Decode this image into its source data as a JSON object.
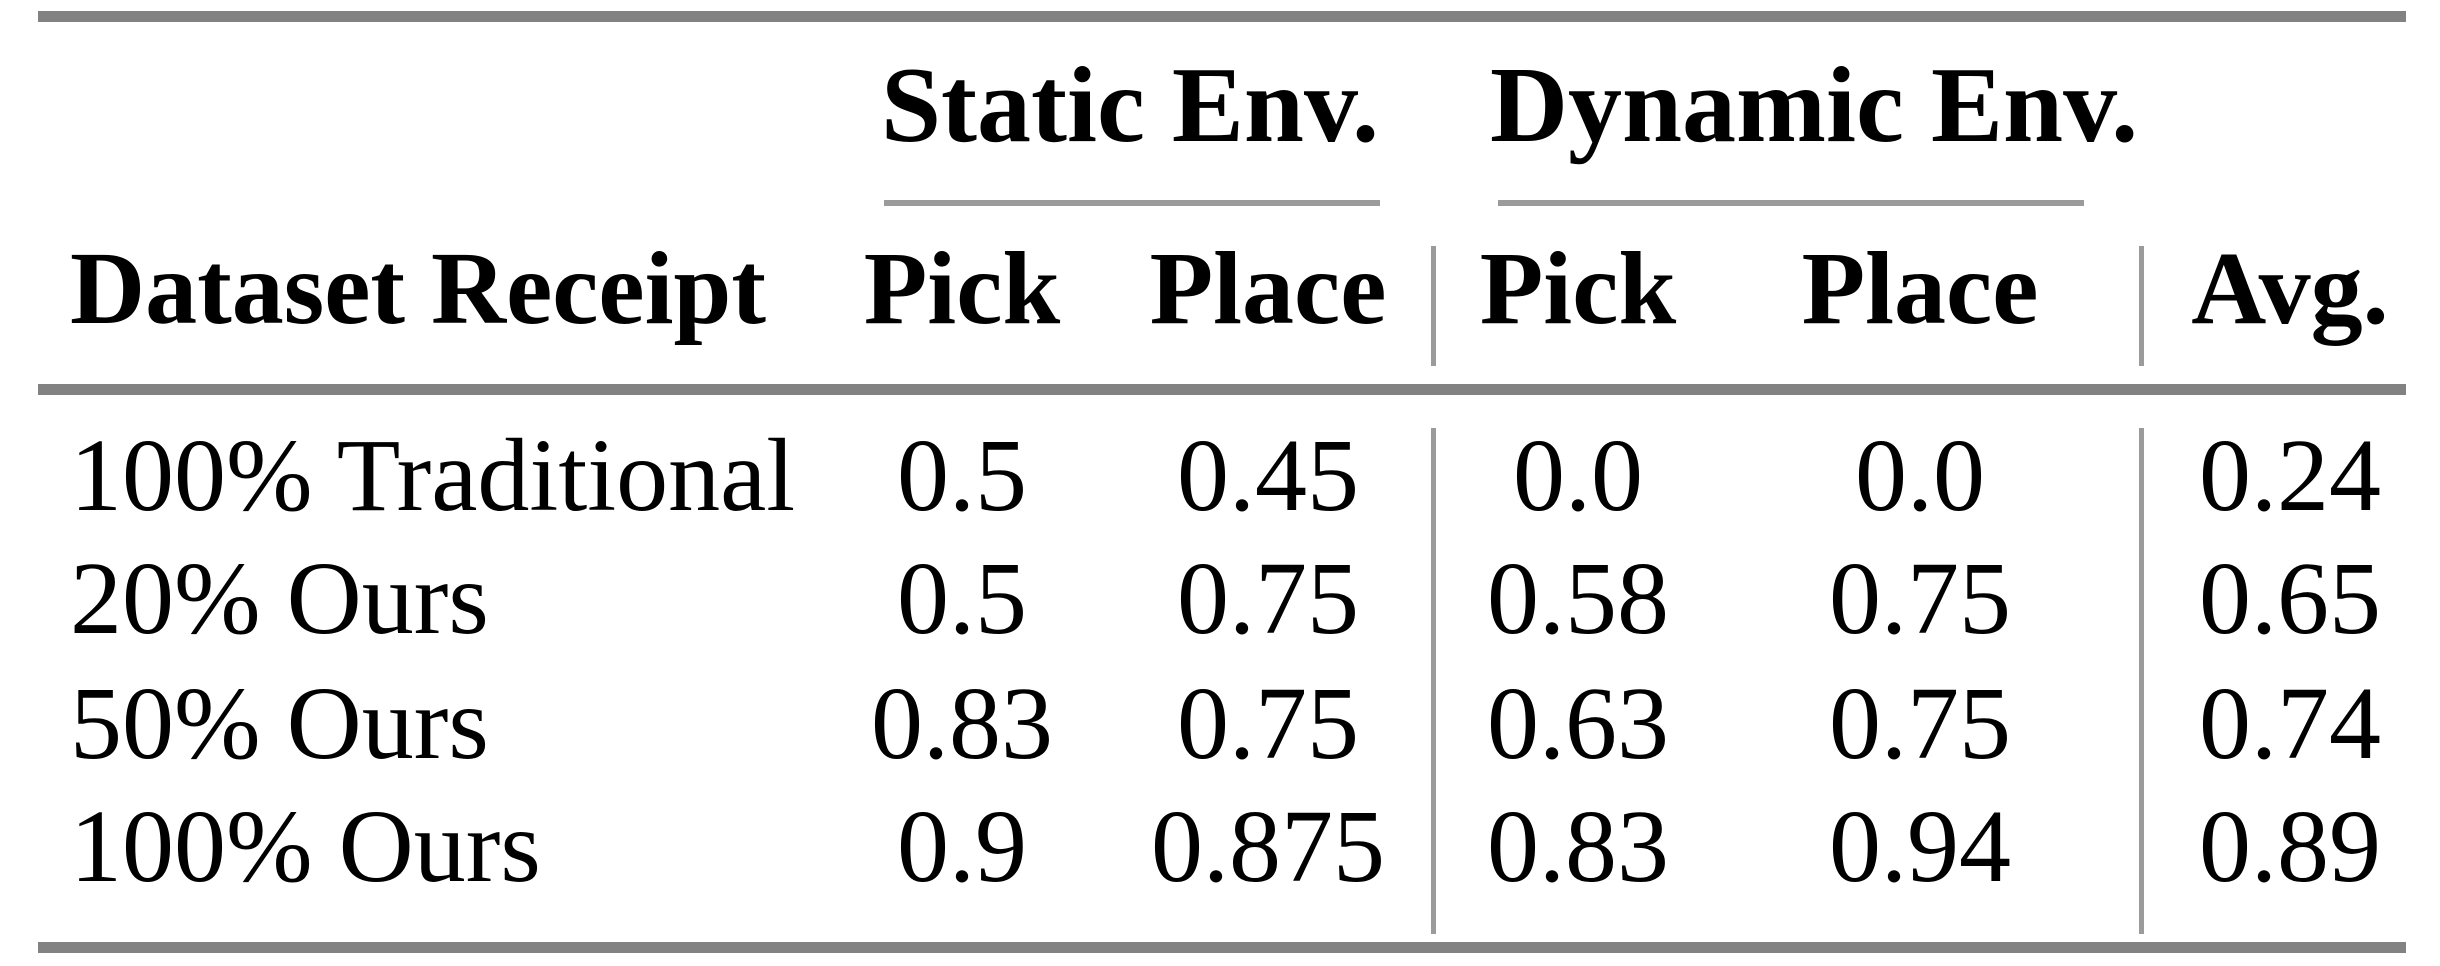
{
  "table": {
    "group_headers": {
      "static": "Static Env.",
      "dynamic": "Dynamic Env."
    },
    "columns": {
      "row_label": "Dataset Receipt",
      "static_pick": "Pick",
      "static_place": "Place",
      "dynamic_pick": "Pick",
      "dynamic_place": "Place",
      "avg": "Avg."
    },
    "rows": [
      {
        "label": "100% Traditional",
        "static_pick": "0.5",
        "static_place": "0.45",
        "dynamic_pick": "0.0",
        "dynamic_place": "0.0",
        "avg": "0.24"
      },
      {
        "label": "20% Ours",
        "static_pick": "0.5",
        "static_place": "0.75",
        "dynamic_pick": "0.58",
        "dynamic_place": "0.75",
        "avg": "0.65"
      },
      {
        "label": "50% Ours",
        "static_pick": "0.83",
        "static_place": "0.75",
        "dynamic_pick": "0.63",
        "dynamic_place": "0.75",
        "avg": "0.74"
      },
      {
        "label": "100% Ours",
        "static_pick": "0.9",
        "static_place": "0.875",
        "dynamic_pick": "0.83",
        "dynamic_place": "0.94",
        "avg": "0.89"
      }
    ]
  },
  "colors": {
    "heavy_rule": "#828282",
    "light_rule": "#9b9b9b",
    "text": "#000000",
    "background": "#ffffff"
  }
}
